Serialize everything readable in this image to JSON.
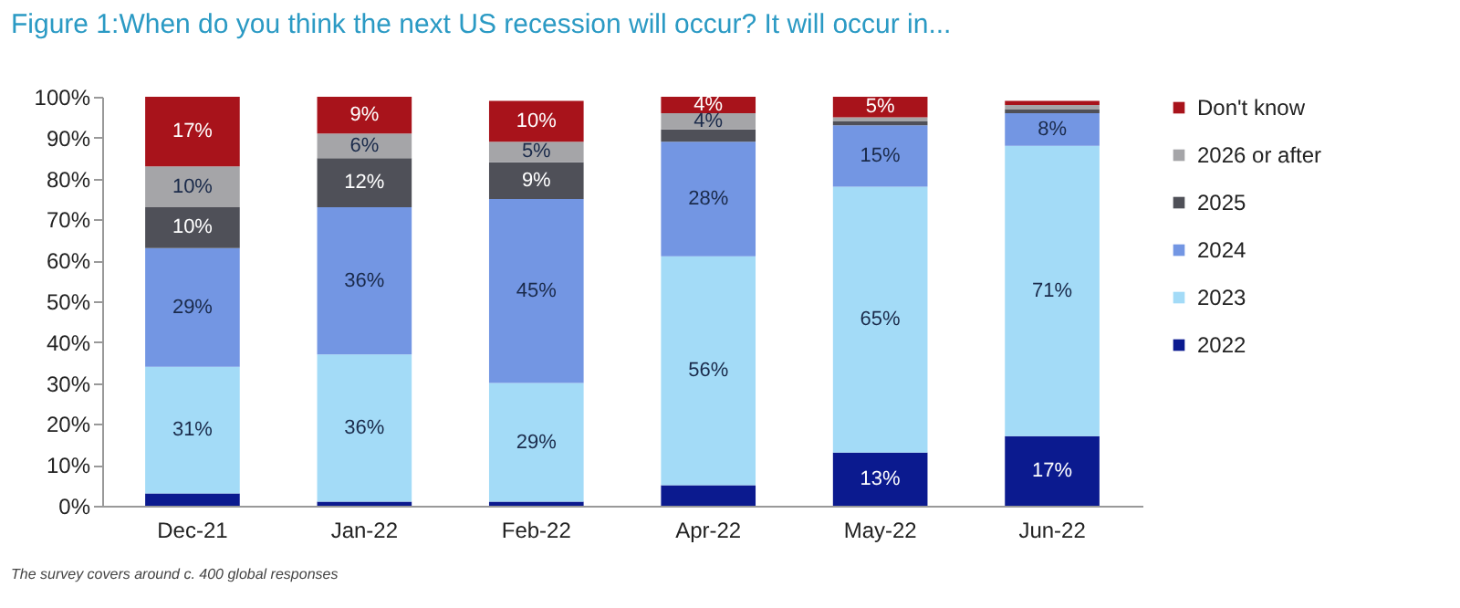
{
  "chart_data": {
    "type": "bar",
    "stacked": true,
    "title": "Figure 1:When do you think the next US recession will occur? It will occur in...",
    "categories": [
      "Dec-21",
      "Jan-22",
      "Feb-22",
      "Apr-22",
      "May-22",
      "Jun-22"
    ],
    "series": [
      {
        "name": "2022",
        "color": "#0b1a8f",
        "values": [
          3,
          1,
          1,
          5,
          13,
          17
        ],
        "value_labels": [
          null,
          null,
          null,
          null,
          "13%",
          "17%"
        ]
      },
      {
        "name": "2023",
        "color": "#a3dbf7",
        "values": [
          31,
          36,
          29,
          56,
          65,
          71
        ],
        "value_labels": [
          "31%",
          "36%",
          "29%",
          "56%",
          "65%",
          "71%"
        ]
      },
      {
        "name": "2024",
        "color": "#7396e3",
        "values": [
          29,
          36,
          45,
          28,
          15,
          8
        ],
        "value_labels": [
          "29%",
          "36%",
          "45%",
          "28%",
          "15%",
          "8%"
        ]
      },
      {
        "name": "2025",
        "color": "#4f5058",
        "values": [
          10,
          12,
          9,
          3,
          1,
          1
        ],
        "value_labels": [
          "10%",
          "12%",
          "9%",
          null,
          null,
          null
        ]
      },
      {
        "name": "2026 or after",
        "color": "#a5a5a8",
        "values": [
          10,
          6,
          5,
          4,
          1,
          1
        ],
        "value_labels": [
          "10%",
          "6%",
          "5%",
          "4%",
          null,
          null
        ]
      },
      {
        "name": "Don't know",
        "color": "#a8131b",
        "values": [
          17,
          9,
          10,
          4,
          5,
          1
        ],
        "value_labels": [
          "17%",
          "9%",
          "10%",
          "4%",
          "5%",
          null
        ]
      }
    ],
    "ylim": [
      0,
      100
    ],
    "yticks": [
      {
        "value": 0,
        "label": "0%"
      },
      {
        "value": 10,
        "label": "10%"
      },
      {
        "value": 20,
        "label": "20%"
      },
      {
        "value": 30,
        "label": "30%"
      },
      {
        "value": 40,
        "label": "40%"
      },
      {
        "value": 50,
        "label": "50%"
      },
      {
        "value": 60,
        "label": "60%"
      },
      {
        "value": 70,
        "label": "70%"
      },
      {
        "value": 80,
        "label": "80%"
      },
      {
        "value": 90,
        "label": "90%"
      },
      {
        "value": 100,
        "label": "100%"
      }
    ],
    "grid": false,
    "legend": "right",
    "annotations": [
      "The survey covers around c. 400 global responses"
    ]
  }
}
